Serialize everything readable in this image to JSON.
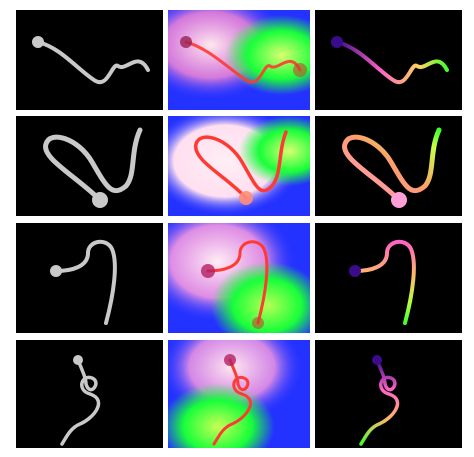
{
  "figure": {
    "rows": 4,
    "columns": [
      "input-curve",
      "heatmap",
      "colored-curve"
    ],
    "colors": {
      "background": "#ffffff",
      "panel_background": "#000000",
      "curve_gray": "#c9c9c9",
      "heat_blue": "#2b35ff",
      "heat_green": "#18ff3a",
      "heat_white": "#ffe8ee",
      "heat_red": "#ff3a33",
      "color_start": "#3a0c8c",
      "color_mid": "#ff62c6",
      "color_end": "#40ff2d"
    }
  }
}
